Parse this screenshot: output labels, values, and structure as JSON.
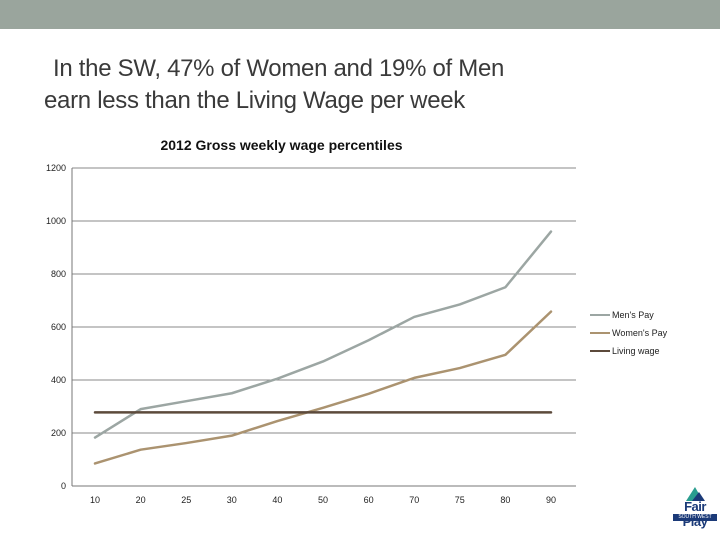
{
  "slide": {
    "title_line1": "In the SW, 47% of Women and 19% of Men",
    "title_line2": "earn less than the Living Wage per week"
  },
  "colors": {
    "top_bar": "#9aa59d",
    "mens": "#9ca6a3",
    "womens": "#ab9370",
    "living": "#5c4a3b",
    "grid": "#888888"
  },
  "logo": {
    "name": "Fair Play",
    "sub": "SOUTH WEST"
  },
  "chart_data": {
    "type": "line",
    "title": "2012 Gross weekly wage percentiles",
    "xlabel": "",
    "ylabel": "",
    "categories": [
      "10",
      "20",
      "25",
      "30",
      "40",
      "50",
      "60",
      "70",
      "75",
      "80",
      "90"
    ],
    "ylim": [
      0,
      1200
    ],
    "yticks": [
      "0",
      "200",
      "400",
      "600",
      "800",
      "1000",
      "1200"
    ],
    "grid": true,
    "legend_position": "right",
    "series": [
      {
        "name": "Men's Pay",
        "values": [
          183,
          290,
          320,
          350,
          405,
          470,
          550,
          638,
          685,
          750,
          960
        ]
      },
      {
        "name": "Women's Pay",
        "values": [
          85,
          137,
          162,
          190,
          245,
          295,
          348,
          408,
          445,
          495,
          658
        ]
      },
      {
        "name": "Living wage",
        "values": [
          278,
          278,
          278,
          278,
          278,
          278,
          278,
          278,
          278,
          278,
          278
        ]
      }
    ]
  }
}
